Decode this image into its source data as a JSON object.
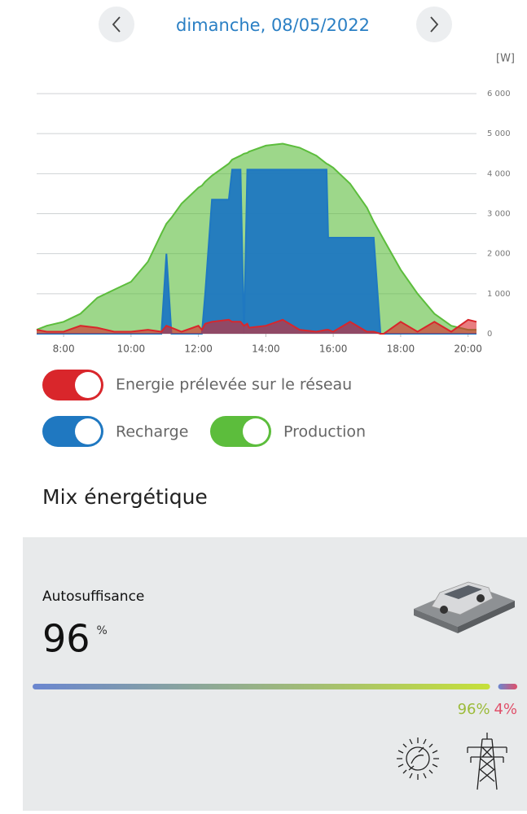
{
  "header": {
    "date": "dimanche, 08/05/2022"
  },
  "chart_data": {
    "type": "area",
    "unit_label": "[W]",
    "x": [
      7.2,
      7.5,
      8,
      8.5,
      9,
      9.5,
      10,
      10.5,
      10.9,
      11.05,
      11.2,
      11.5,
      12,
      12.1,
      12.2,
      12.4,
      12.9,
      13,
      13.25,
      13.35,
      13.45,
      13.5,
      14,
      14.5,
      15,
      15.5,
      15.8,
      15.85,
      16,
      16.5,
      17,
      17.2,
      17.4,
      17.5,
      18,
      18.5,
      19,
      19.5,
      20,
      20.25
    ],
    "series": [
      {
        "name": "Production",
        "color": "#5cbd3c",
        "values": [
          100,
          200,
          300,
          500,
          900,
          1100,
          1300,
          1800,
          2500,
          2750,
          2900,
          3250,
          3650,
          3700,
          3800,
          3950,
          4250,
          4350,
          4450,
          4500,
          4520,
          4550,
          4700,
          4750,
          4650,
          4450,
          4250,
          4230,
          4150,
          3750,
          3150,
          2800,
          2500,
          2350,
          1600,
          1000,
          500,
          200,
          100,
          100
        ]
      },
      {
        "name": "Recharge",
        "color": "#1f78c1",
        "values": [
          0,
          0,
          0,
          0,
          0,
          0,
          0,
          0,
          0,
          2000,
          0,
          0,
          0,
          0,
          1000,
          3350,
          3350,
          4100,
          4100,
          0,
          4100,
          4100,
          4100,
          4100,
          4100,
          4100,
          4100,
          2400,
          2400,
          2400,
          2400,
          2400,
          0,
          0,
          0,
          0,
          0,
          0,
          0,
          0
        ]
      },
      {
        "name": "Energie prélevée sur le réseau",
        "color": "#d9262b",
        "values": [
          100,
          50,
          50,
          200,
          150,
          50,
          50,
          100,
          50,
          200,
          150,
          50,
          200,
          100,
          250,
          300,
          350,
          300,
          300,
          200,
          250,
          150,
          200,
          350,
          100,
          50,
          100,
          100,
          50,
          300,
          50,
          50,
          0,
          0,
          300,
          50,
          300,
          50,
          350,
          300
        ]
      }
    ],
    "xlim": [
      7.2,
      20.25
    ],
    "xticks": [
      {
        "value": 8,
        "label": "8:00"
      },
      {
        "value": 10,
        "label": "10:00"
      },
      {
        "value": 12,
        "label": "12:00"
      },
      {
        "value": 14,
        "label": "14:00"
      },
      {
        "value": 16,
        "label": "16:00"
      },
      {
        "value": 18,
        "label": "18:00"
      },
      {
        "value": 20,
        "label": "20:00"
      }
    ],
    "ylim": [
      0,
      6000
    ],
    "yticks": [
      0,
      {
        "value": 1000,
        "label": "1 000"
      },
      {
        "value": 2000,
        "label": "2 000"
      },
      {
        "value": 3000,
        "label": "3 000"
      },
      {
        "value": 4000,
        "label": "4 000"
      },
      {
        "value": 5000,
        "label": "5 000"
      },
      {
        "value": 6000,
        "label": "6 000"
      }
    ],
    "grid": true
  },
  "mix": {
    "title": "Mix énergétique",
    "label": "Autosuffisance",
    "value": 96,
    "unit": "%",
    "bar": {
      "values": [
        96,
        4
      ],
      "value_labels": [
        "96%",
        "4%"
      ],
      "colors": [
        "#9cbb3a",
        "#e0506a"
      ]
    }
  }
}
